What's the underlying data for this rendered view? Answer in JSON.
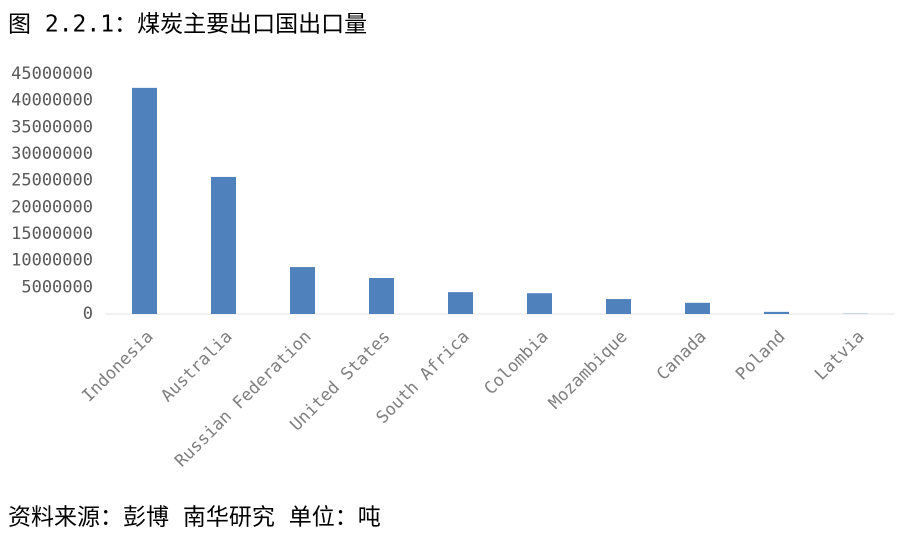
{
  "chart_data": {
    "type": "bar",
    "title": "图 2.2.1：煤炭主要出口国出口量",
    "source": "资料来源：彭博 南华研究 单位：吨",
    "categories": [
      "Indonesia",
      "Australia",
      "Russian Federation",
      "United States",
      "South Africa",
      "Colombia",
      "Mozambique",
      "Canada",
      "Poland",
      "Latvia"
    ],
    "values": [
      42400000,
      25700000,
      8800000,
      6750000,
      4100000,
      3900000,
      2800000,
      2100000,
      400000,
      50000
    ],
    "color": "#4f81bd",
    "ylim": [
      0,
      45000000
    ],
    "yticks": [
      0,
      5000000,
      10000000,
      15000000,
      20000000,
      25000000,
      30000000,
      35000000,
      40000000,
      45000000
    ],
    "grid": false
  }
}
